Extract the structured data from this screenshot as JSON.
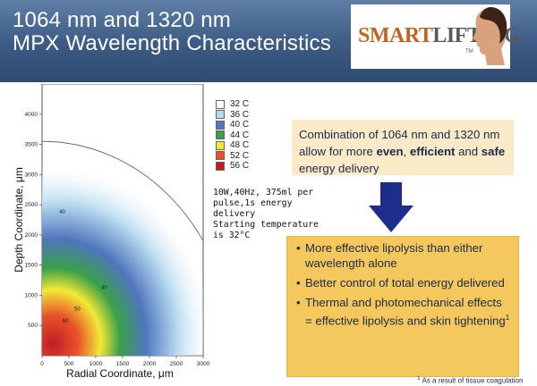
{
  "header": {
    "title_line1": "1064 nm and 1320 nm",
    "title_line2": "MPX Wavelength Characteristics"
  },
  "logo": {
    "text_part1": "SMART",
    "text_part2": "LIFTING",
    "trademark": "TM"
  },
  "colors": {
    "header_dark": "#2d4a72",
    "box1_bg": "#fbeac8",
    "box2_bg": "#f4c85d",
    "arrow": "#1c2e8a"
  },
  "chart_data": {
    "type": "heatmap",
    "xlabel": "Radial Coordinate, μm",
    "ylabel": "Depth Coordinate, μm",
    "xlim": [
      0,
      3000
    ],
    "ylim": [
      0,
      4500
    ],
    "x_ticks": [
      0,
      500,
      1000,
      1500,
      2000,
      2500,
      3000
    ],
    "y_ticks": [
      500,
      1000,
      1500,
      2000,
      2500,
      3000,
      3500,
      4000
    ],
    "legend": [
      {
        "label": "32 C",
        "color": "#ffffff"
      },
      {
        "label": "36 C",
        "color": "#b9dcf0"
      },
      {
        "label": "40 C",
        "color": "#4f76bd"
      },
      {
        "label": "44 C",
        "color": "#3aa04a"
      },
      {
        "label": "48 C",
        "color": "#f2e936"
      },
      {
        "label": "52 C",
        "color": "#e8522a"
      },
      {
        "label": "56 C",
        "color": "#c11c24"
      }
    ],
    "boundary_radius": 3550,
    "contour_labels": [
      {
        "text": "40",
        "x": 320,
        "y": 2350
      },
      {
        "text": "40",
        "x": 1100,
        "y": 1100
      },
      {
        "text": "50",
        "x": 600,
        "y": 750
      },
      {
        "text": "60",
        "x": 380,
        "y": 550
      }
    ],
    "annotation": {
      "line1": "10W,40Hz, 375ml per",
      "line2": "pulse,1s energy",
      "line3": "delivery",
      "line4": "Starting temperature",
      "line5": "is 32°C"
    }
  },
  "box1": {
    "text_a": "Combination of 1064 nm and 1320 nm allow for more ",
    "even": "even",
    "comma": ", ",
    "efficient": "efficient",
    "text_b": " and ",
    "safe": "safe",
    "text_c": " energy delivery"
  },
  "box2": {
    "bullet_char": "•",
    "bullets": [
      "More effective lipolysis than either wavelength alone",
      "Better control of total energy delivered",
      "Thermal and photomechanical effects = effective lipolysis and skin tightening"
    ],
    "superscript": "1"
  },
  "footnote": {
    "marker": "1",
    "text": " As a result of tissue coagulation"
  }
}
